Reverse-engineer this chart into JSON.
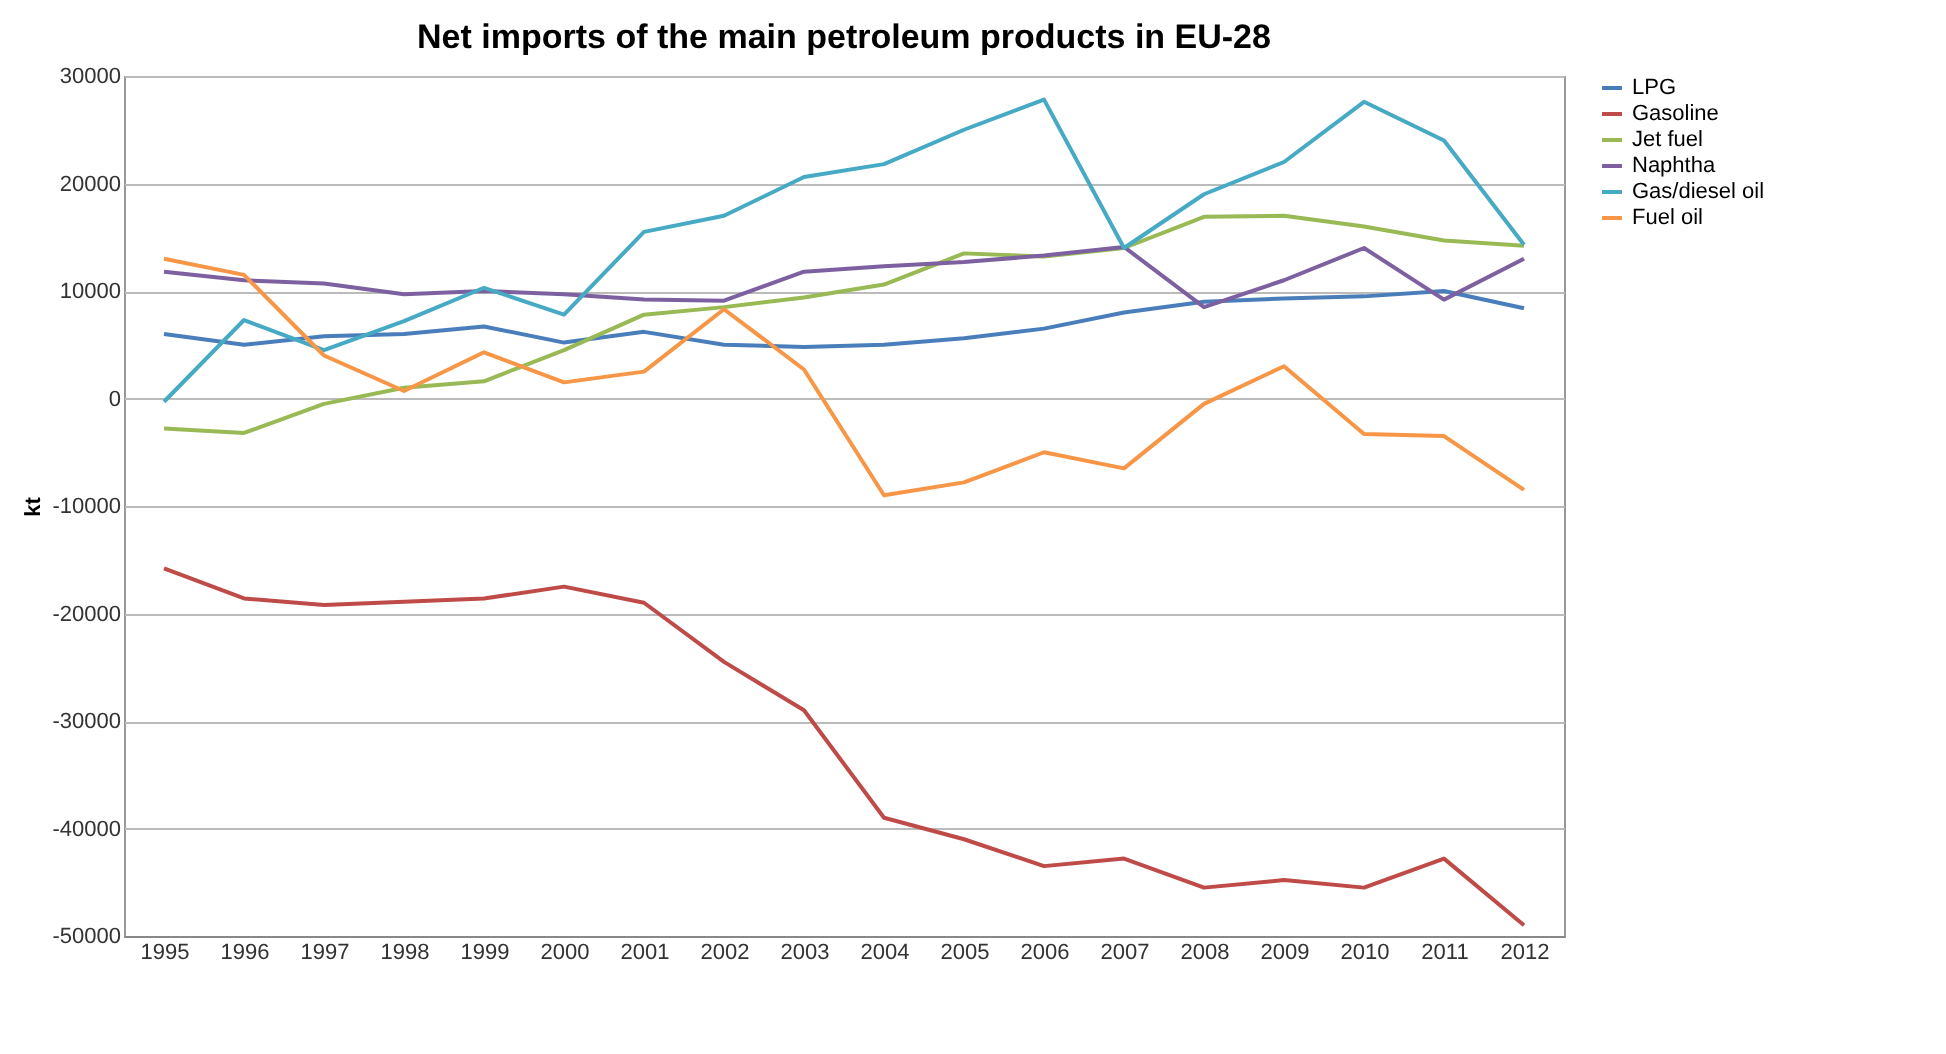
{
  "chart_data": {
    "type": "line",
    "title": "Net imports of the main petroleum products in EU-28",
    "ylabel": "kt",
    "categories": [
      "1995",
      "1996",
      "1997",
      "1998",
      "1999",
      "2000",
      "2001",
      "2002",
      "2003",
      "2004",
      "2005",
      "2006",
      "2007",
      "2008",
      "2009",
      "2010",
      "2011",
      "2012"
    ],
    "series": [
      {
        "name": "LPG",
        "color": "#4a7ebb",
        "values": [
          6000,
          5000,
          5800,
          6000,
          6700,
          5200,
          6200,
          5000,
          4800,
          5000,
          5600,
          6500,
          8000,
          9000,
          9300,
          9500,
          10000,
          8400
        ]
      },
      {
        "name": "Gasoline",
        "color": "#be4b48",
        "values": [
          -15800,
          -18600,
          -19200,
          -18900,
          -18600,
          -17500,
          -19000,
          -24500,
          -29000,
          -39000,
          -41000,
          -43500,
          -42800,
          -45500,
          -44800,
          -45500,
          -42800,
          -49000
        ]
      },
      {
        "name": "Jet fuel",
        "color": "#98b954",
        "values": [
          -2800,
          -3200,
          -500,
          1000,
          1600,
          4500,
          7800,
          8500,
          9400,
          10600,
          13500,
          13200,
          14000,
          16900,
          17000,
          16000,
          14700,
          14200
        ]
      },
      {
        "name": "Naphtha",
        "color": "#7d60a0",
        "values": [
          11800,
          11000,
          10700,
          9700,
          10000,
          9700,
          9200,
          9100,
          11800,
          12300,
          12700,
          13300,
          14100,
          8500,
          11000,
          14000,
          9200,
          13000
        ]
      },
      {
        "name": "Gas/diesel oil",
        "color": "#46aac5",
        "values": [
          -300,
          7300,
          4500,
          7200,
          10300,
          7800,
          15500,
          17000,
          20600,
          21800,
          25000,
          27800,
          14000,
          19000,
          22000,
          27600,
          24000,
          14300
        ]
      },
      {
        "name": "Fuel oil",
        "color": "#f79646",
        "values": [
          13000,
          11500,
          4000,
          700,
          4300,
          1500,
          2500,
          8300,
          2700,
          -9000,
          -7800,
          -5000,
          -6500,
          -500,
          3000,
          -3300,
          -3500,
          -8500
        ]
      }
    ],
    "ylim": [
      -50000,
      30000
    ],
    "yticks": [
      -50000,
      -40000,
      -30000,
      -20000,
      -10000,
      0,
      10000,
      20000,
      30000
    ],
    "grid": "y",
    "legend": "right",
    "marker": "none",
    "line_style": "solid"
  }
}
